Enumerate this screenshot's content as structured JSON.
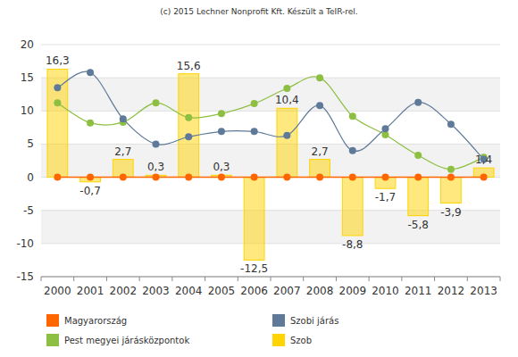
{
  "chart_data": {
    "type": "bar",
    "title": "(c) 2015 Lechner Nonprofit Kft. Készült a TeIR-rel.",
    "categories": [
      "2000",
      "2001",
      "2002",
      "2003",
      "2004",
      "2005",
      "2006",
      "2007",
      "2008",
      "2009",
      "2010",
      "2011",
      "2012",
      "2013"
    ],
    "ylim": [
      -15,
      20
    ],
    "yticks": [
      -15,
      -10,
      -5,
      0,
      5,
      10,
      15,
      20
    ],
    "grid": true,
    "legend": "bottom",
    "data_labels": true,
    "series": [
      {
        "name": "Magyarország",
        "type": "line",
        "color": "#ff6600",
        "marker": "circle",
        "line_style": "solid",
        "values": [
          0,
          0,
          0,
          0,
          0,
          0,
          0,
          0,
          0,
          0,
          0,
          0,
          0,
          0
        ]
      },
      {
        "name": "Szobi járás",
        "type": "line",
        "color": "#5f7a99",
        "marker": "circle",
        "line_style": "smooth",
        "values": [
          13.5,
          15.8,
          8.8,
          5.0,
          6.1,
          6.9,
          6.9,
          6.3,
          10.8,
          4.0,
          7.3,
          11.3,
          8.0,
          2.7
        ]
      },
      {
        "name": "Pest megyei járásközpontok",
        "type": "line",
        "color": "#8dbf42",
        "marker": "circle",
        "line_style": "smooth",
        "values": [
          11.2,
          8.2,
          8.3,
          11.2,
          9.0,
          9.6,
          11.1,
          13.4,
          15.0,
          9.2,
          6.4,
          3.3,
          1.2,
          3.0
        ]
      },
      {
        "name": "Szob",
        "type": "bar",
        "color": "#ffd400",
        "values": [
          16.3,
          -0.7,
          2.7,
          0.3,
          15.6,
          0.3,
          -12.5,
          10.4,
          2.7,
          -8.8,
          -1.7,
          -5.8,
          -3.9,
          1.4
        ],
        "value_labels": [
          "16,3",
          "-0,7",
          "2,7",
          "0,3",
          "15,6",
          "0,3",
          "-12,5",
          "10,4",
          "2,7",
          "-8,8",
          "-1,7",
          "-5,8",
          "-3,9",
          "1,4"
        ]
      }
    ]
  }
}
